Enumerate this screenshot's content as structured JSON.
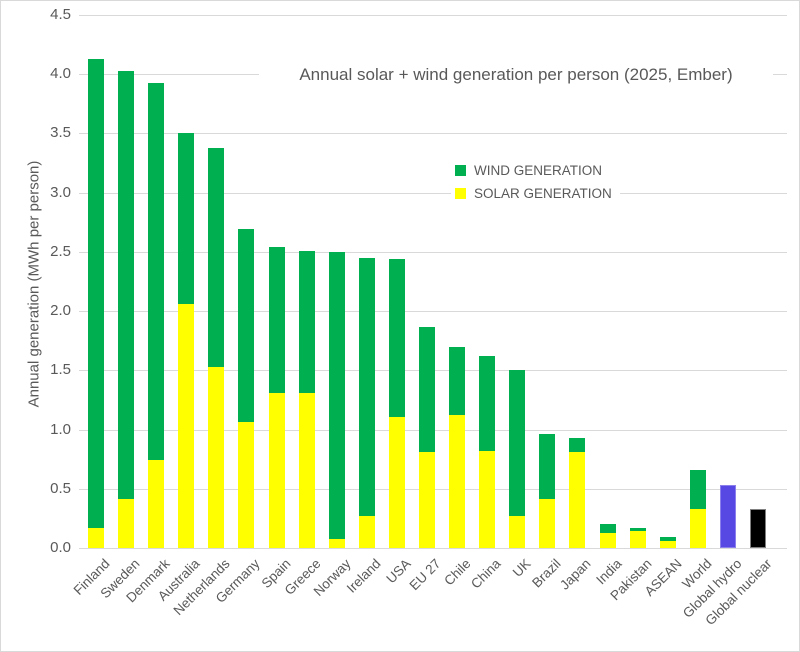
{
  "title": "Annual solar + wind generation per person (2025, Ember)",
  "y_axis": {
    "label": "Annual generation (MWh per person)",
    "ticks": [
      "4.5",
      "4.0",
      "3.5",
      "3.0",
      "2.5",
      "2.0",
      "1.5",
      "1.0",
      "0.5",
      "0.0"
    ]
  },
  "legend": {
    "items": [
      {
        "label": "WIND GENERATION",
        "color": "#00B050"
      },
      {
        "label": "SOLAR GENERATION",
        "color": "#FFFF00"
      }
    ]
  },
  "colors": {
    "wind": "#00B050",
    "solar": "#FFFF00",
    "hydro": "#5748E3",
    "nuclear": "#000000",
    "gridline": "#D9D9D9",
    "text": "#595959"
  },
  "chart_data": {
    "type": "bar",
    "stacked": true,
    "grid": true,
    "legend_position": "inside upper-middle of plot",
    "title": "Annual solar + wind generation per person (2025, Ember)",
    "xlabel": "",
    "ylabel": "Annual generation (MWh per person)",
    "ylim": [
      0,
      4.5
    ],
    "ytick_step": 0.5,
    "categories": [
      "Finland",
      "Sweden",
      "Denmark",
      "Australia",
      "Netherlands",
      "Germany",
      "Spain",
      "Greece",
      "Norway",
      "Ireland",
      "USA",
      "EU 27",
      "Chile",
      "China",
      "UK",
      "Brazil",
      "Japan",
      "India",
      "Pakistan",
      "ASEAN",
      "World",
      "Global hydro",
      "Global nuclear"
    ],
    "series": [
      {
        "name": "SOLAR GENERATION",
        "color": "#FFFF00",
        "values": [
          0.17,
          0.41,
          0.74,
          2.06,
          1.53,
          1.06,
          1.31,
          1.31,
          0.08,
          0.27,
          1.11,
          0.81,
          1.12,
          0.82,
          0.27,
          0.41,
          0.81,
          0.13,
          0.14,
          0.06,
          0.33,
          null,
          null
        ]
      },
      {
        "name": "WIND GENERATION",
        "color": "#00B050",
        "values": [
          3.96,
          3.62,
          3.19,
          1.44,
          1.85,
          1.63,
          1.23,
          1.2,
          2.42,
          2.18,
          1.33,
          1.06,
          0.58,
          0.8,
          1.23,
          0.55,
          0.12,
          0.07,
          0.03,
          0.03,
          0.33,
          null,
          null
        ]
      }
    ],
    "other_bars": [
      {
        "category": "Global hydro",
        "value": 0.53,
        "color": "#5748E3",
        "border": "#8A7FEB"
      },
      {
        "category": "Global nuclear",
        "value": 0.33,
        "color": "#000000",
        "border": "#808080"
      }
    ],
    "totals": [
      4.13,
      4.03,
      3.93,
      3.5,
      3.38,
      2.69,
      2.54,
      2.51,
      2.5,
      2.45,
      2.44,
      1.87,
      1.7,
      1.62,
      1.5,
      0.96,
      0.93,
      0.2,
      0.17,
      0.09,
      0.66,
      0.53,
      0.33
    ]
  }
}
